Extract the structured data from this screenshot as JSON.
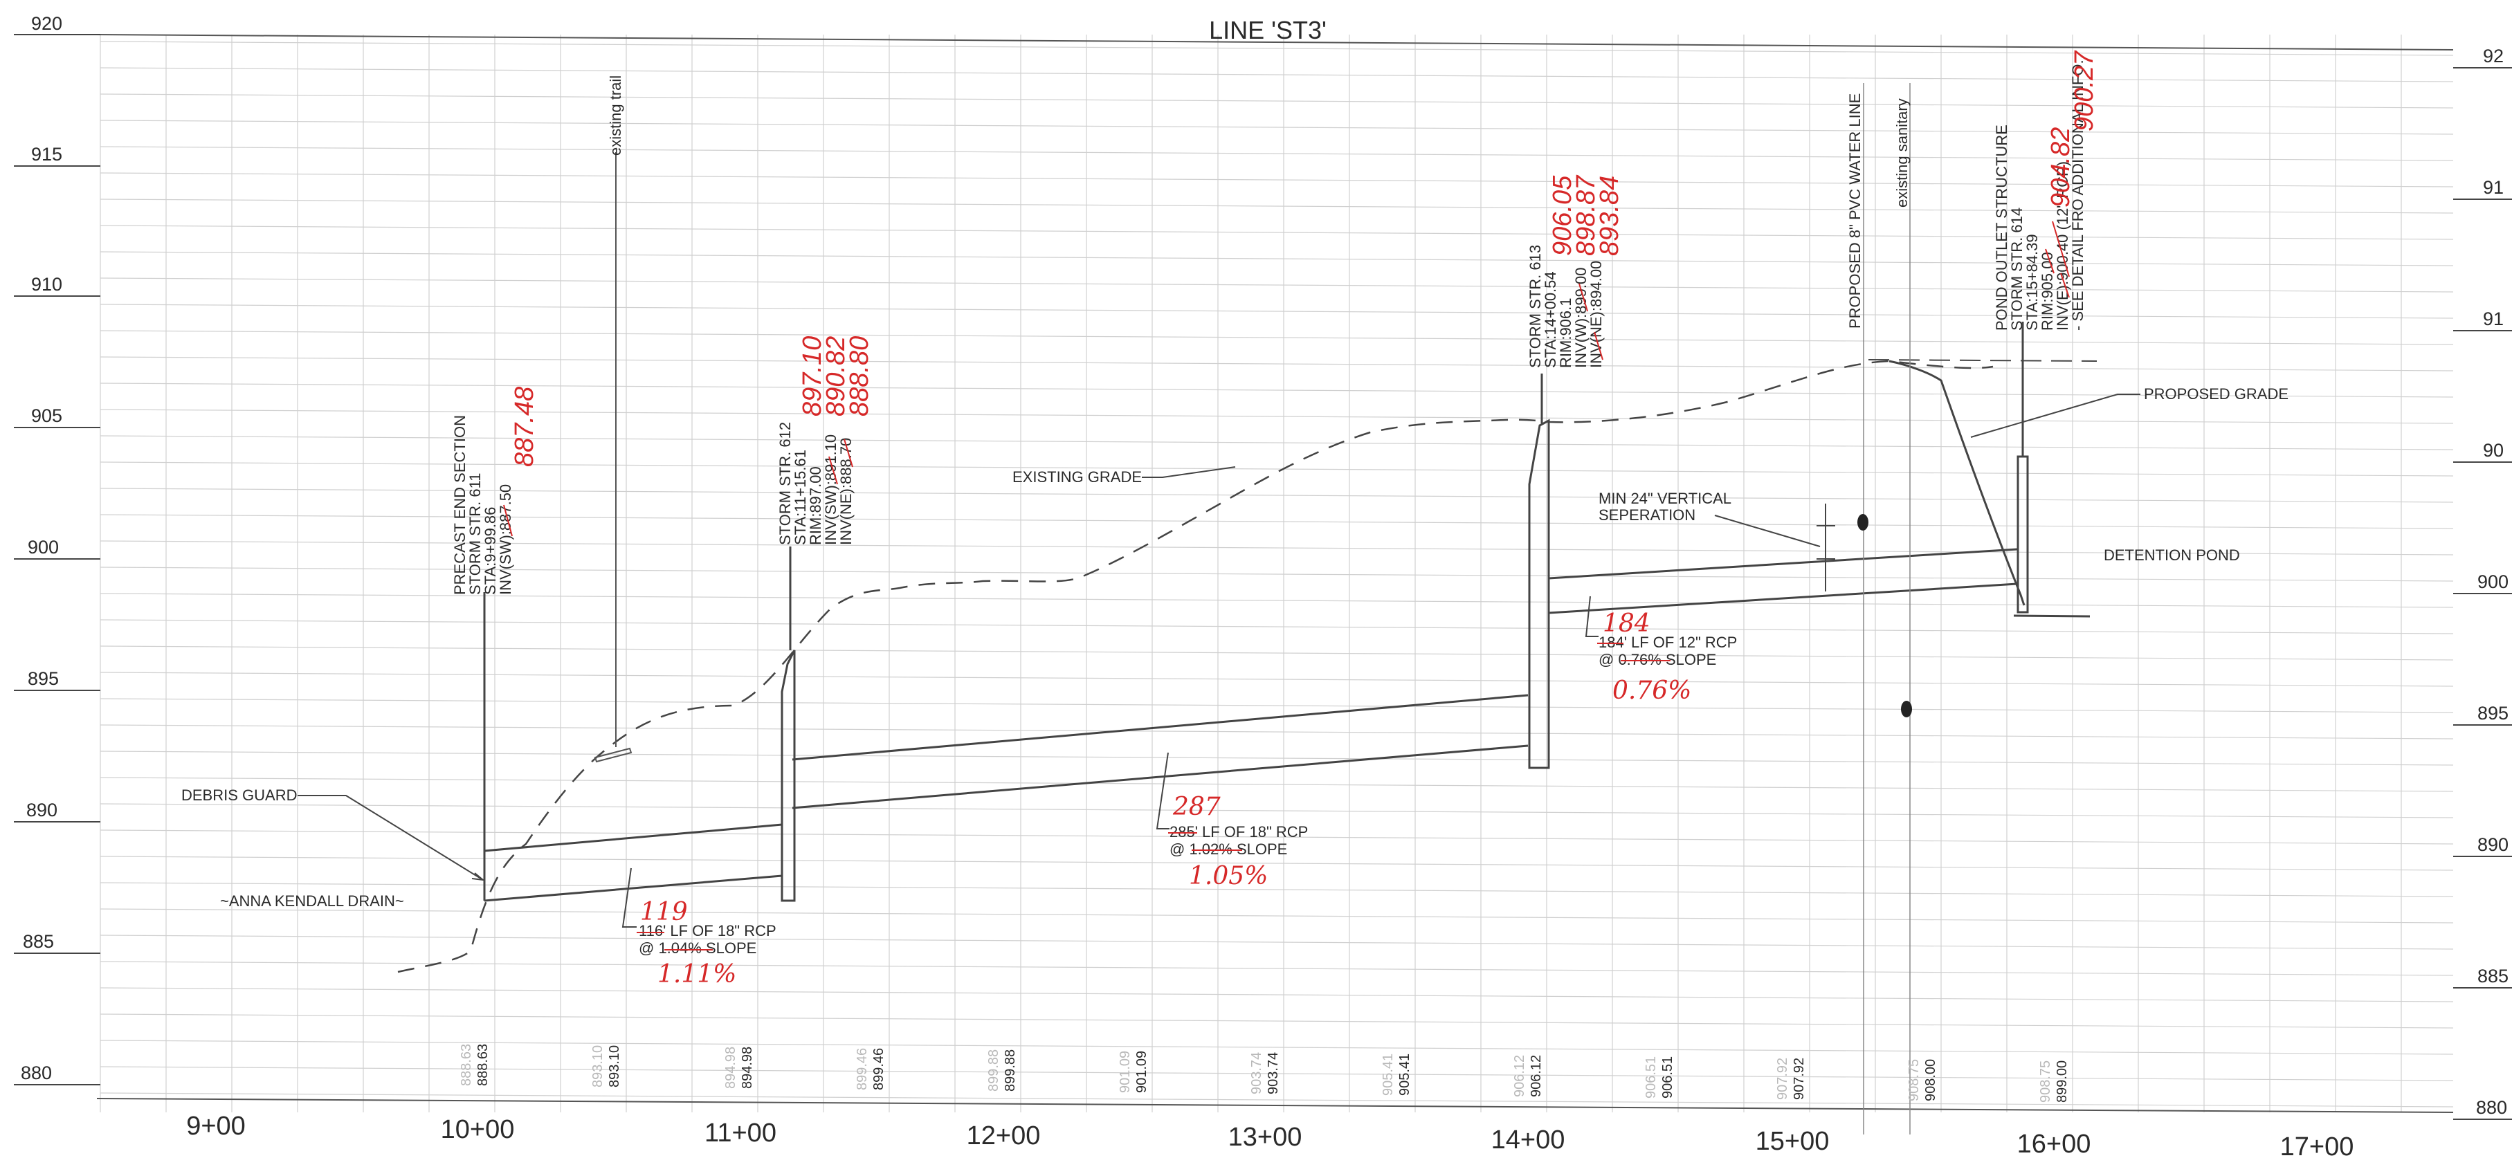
{
  "title": "LINE 'ST3'",
  "elevations_left": [
    "920",
    "915",
    "910",
    "905",
    "900",
    "895",
    "890",
    "885",
    "880"
  ],
  "elevations_right": [
    "92",
    "91",
    "91",
    "90",
    "900",
    "895",
    "890",
    "885",
    "880"
  ],
  "stations": [
    "9+00",
    "10+00",
    "11+00",
    "12+00",
    "13+00",
    "14+00",
    "15+00",
    "16+00",
    "17+00"
  ],
  "profile_faint": [
    "888.63",
    "893.10",
    "894.98",
    "899.46",
    "899.88",
    "901.09",
    "903.74",
    "905.41",
    "906.12",
    "906.51",
    "907.92",
    "908.75",
    "908.75"
  ],
  "profile_dark": [
    "888.63",
    "893.10",
    "894.98",
    "899.46",
    "899.88",
    "901.09",
    "903.74",
    "905.41",
    "906.12",
    "906.51",
    "907.92",
    "908.00",
    "899.00"
  ],
  "callouts": {
    "debris_guard": "DEBRIS GUARD",
    "anna_kendall": "~ANNA KENDALL DRAIN~",
    "existing_grade": "EXISTING GRADE",
    "proposed_grade": "PROPOSED GRADE",
    "detention_pond": "DETENTION POND",
    "min_vertical_1": "MIN 24\" VERTICAL",
    "min_vertical_2": "SEPERATION",
    "existing_trail": "existing trail",
    "water_line": "PROPOSED 8\" PVC WATER LINE",
    "existing_sanitary": "existing sanitary"
  },
  "structures": {
    "str611": [
      "PRECAST END SECTION",
      "STORM STR. 611",
      "STA:9+99.86",
      "INV(SW):887.50"
    ],
    "str612": [
      "STORM STR. 612",
      "STA:11+15.61",
      "RIM:897.00",
      "INV(SW):891.10",
      "INV(NE):888.70"
    ],
    "str613": [
      "STORM STR. 613",
      "STA:14+00.54",
      "RIM:906.1",
      "INV(W):899.00",
      "INV(NE):894.00"
    ],
    "str614": [
      "POND OUTLET STRUCTURE",
      "STORM STR. 614",
      "STA:15+84.39",
      "RIM:905.00",
      "INV(E):900.40 (12\" RCP)",
      "- SEE DETAIL FRO ADDITIONAL INFO."
    ]
  },
  "pipes": {
    "pipe1": {
      "length": "116' LF OF 18\" RCP",
      "slope": "@ 1.04% SLOPE",
      "red_length": "119",
      "red_slope": "1.11%"
    },
    "pipe2": {
      "length": "285' LF OF 18\" RCP",
      "slope": "@ 1.02% SLOPE",
      "red_length": "287",
      "red_slope": "1.05%"
    },
    "pipe3": {
      "length": "184' LF OF 12\" RCP",
      "slope": "@ 0.76% SLOPE",
      "red_length": "184",
      "red_slope": "0.76%"
    }
  },
  "red_marks": {
    "str611": [
      "887.48"
    ],
    "str612": [
      "897.10",
      "890.82",
      "888.80"
    ],
    "str613": [
      "906.05",
      "898.87",
      "893.84"
    ],
    "str614": [
      "904.82",
      "900.27"
    ]
  },
  "colors": {
    "ink": "#2a2a2a",
    "grid": "#cfcfcf",
    "red": "#d62828",
    "faint": "#b9b9b9"
  }
}
